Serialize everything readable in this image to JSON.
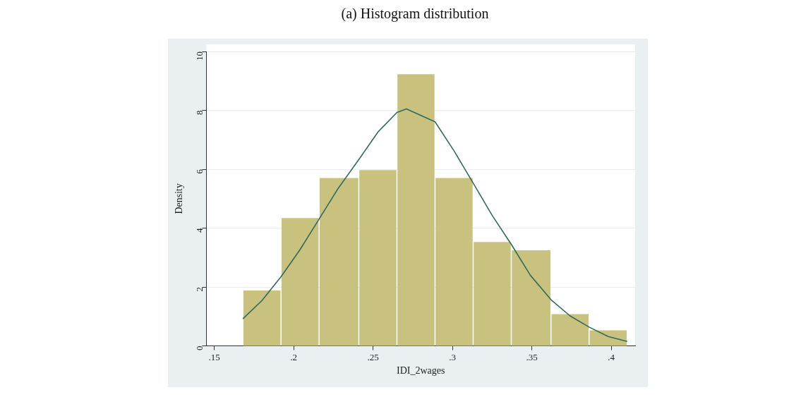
{
  "chart_data": {
    "type": "histogram",
    "title": "(a)  Histogram distribution",
    "xlabel": "IDI_2wages",
    "ylabel": "Density",
    "series": [
      {
        "type": "histogram",
        "color": "#c9c27f",
        "bins": [
          0.168,
          0.192,
          0.216,
          0.241,
          0.265,
          0.289,
          0.313,
          0.337,
          0.362,
          0.386,
          0.41
        ],
        "values": [
          1.88,
          4.34,
          5.7,
          5.97,
          9.23,
          5.7,
          3.53,
          3.25,
          1.08,
          0.53
        ]
      },
      {
        "type": "line",
        "color": "#2e6b5e",
        "x": [
          0.168,
          0.18,
          0.192,
          0.204,
          0.216,
          0.228,
          0.241,
          0.253,
          0.265,
          0.271,
          0.289,
          0.301,
          0.313,
          0.325,
          0.337,
          0.349,
          0.362,
          0.374,
          0.386,
          0.398,
          0.41
        ],
        "values": [
          0.92,
          1.54,
          2.35,
          3.27,
          4.31,
          5.35,
          6.33,
          7.26,
          7.93,
          8.05,
          7.61,
          6.62,
          5.53,
          4.43,
          3.45,
          2.4,
          1.57,
          1.02,
          0.64,
          0.32,
          0.15
        ]
      }
    ],
    "xlim": [
      0.145,
      0.415
    ],
    "xticks": [
      {
        "value": 0.15,
        "label": ".15"
      },
      {
        "value": 0.2,
        "label": ".2"
      },
      {
        "value": 0.25,
        "label": ".25"
      },
      {
        "value": 0.3,
        "label": ".3"
      },
      {
        "value": 0.35,
        "label": ".35"
      },
      {
        "value": 0.4,
        "label": ".4"
      }
    ],
    "ylim": [
      0,
      10
    ],
    "yticks": [
      0,
      2,
      4,
      6,
      8,
      10
    ],
    "grid": "y",
    "legend": false
  }
}
